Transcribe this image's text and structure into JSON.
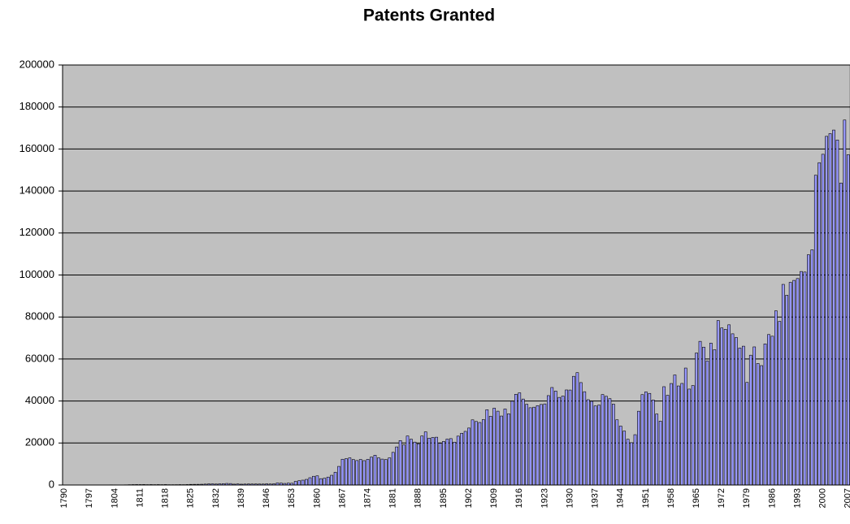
{
  "chart_data": {
    "type": "bar",
    "title": "Patents Granted",
    "categories": [
      "1790",
      null,
      null,
      null,
      null,
      null,
      null,
      "1797",
      null,
      null,
      null,
      null,
      null,
      null,
      "1804",
      null,
      null,
      null,
      null,
      null,
      null,
      "1811",
      null,
      null,
      null,
      null,
      null,
      null,
      "1818",
      null,
      null,
      null,
      null,
      null,
      null,
      "1825",
      null,
      null,
      null,
      null,
      null,
      null,
      "1832",
      null,
      null,
      null,
      null,
      null,
      null,
      "1839",
      null,
      null,
      null,
      null,
      null,
      null,
      "1846",
      null,
      null,
      null,
      null,
      null,
      null,
      "1853",
      null,
      null,
      null,
      null,
      null,
      null,
      "1860",
      null,
      null,
      null,
      null,
      null,
      null,
      "1867",
      null,
      null,
      null,
      null,
      null,
      null,
      "1874",
      null,
      null,
      null,
      null,
      null,
      null,
      "1881",
      null,
      null,
      null,
      null,
      null,
      null,
      "1888",
      null,
      null,
      null,
      null,
      null,
      null,
      "1895",
      null,
      null,
      null,
      null,
      null,
      null,
      "1902",
      null,
      null,
      null,
      null,
      null,
      null,
      "1909",
      null,
      null,
      null,
      null,
      null,
      null,
      "1916",
      null,
      null,
      null,
      null,
      null,
      null,
      "1923",
      null,
      null,
      null,
      null,
      null,
      null,
      "1930",
      null,
      null,
      null,
      null,
      null,
      null,
      "1937",
      null,
      null,
      null,
      null,
      null,
      null,
      "1944",
      null,
      null,
      null,
      null,
      null,
      null,
      "1951",
      null,
      null,
      null,
      null,
      null,
      null,
      "1958",
      null,
      null,
      null,
      null,
      null,
      null,
      "1965",
      null,
      null,
      null,
      null,
      null,
      null,
      "1972",
      null,
      null,
      null,
      null,
      null,
      null,
      "1979",
      null,
      null,
      null,
      null,
      null,
      null,
      "1986",
      null,
      null,
      null,
      null,
      null,
      null,
      "1993",
      null,
      null,
      null,
      null,
      null,
      null,
      "2000",
      null,
      null,
      null,
      null,
      null,
      null,
      "2007"
    ],
    "values": [
      3,
      33,
      11,
      20,
      22,
      12,
      44,
      51,
      28,
      44,
      41,
      44,
      65,
      97,
      84,
      57,
      63,
      99,
      158,
      203,
      223,
      215,
      238,
      181,
      210,
      173,
      206,
      174,
      222,
      156,
      155,
      168,
      200,
      173,
      228,
      304,
      323,
      331,
      368,
      447,
      544,
      573,
      474,
      586,
      630,
      752,
      702,
      426,
      514,
      404,
      458,
      490,
      488,
      493,
      478,
      473,
      566,
      495,
      583,
      984,
      883,
      752,
      885,
      844,
      1755,
      2046,
      2315,
      2686,
      3467,
      4160,
      4357,
      3020,
      3214,
      3773,
      4630,
      6088,
      8863,
      12277,
      12526,
      12931,
      12137,
      11659,
      12180,
      11616,
      12230,
      13291,
      14172,
      12920,
      12345,
      12133,
      12926,
      15548,
      18135,
      21162,
      19118,
      23331,
      21797,
      20429,
      19585,
      23360,
      25313,
      22312,
      22661,
      22768,
      19875,
      20745,
      21867,
      22098,
      20404,
      23278,
      24644,
      25546,
      27136,
      31029,
      30258,
      29775,
      31170,
      35859,
      32757,
      36574,
      35168,
      32856,
      36198,
      33917,
      39892,
      43207,
      43892,
      40935,
      38452,
      36797,
      37060,
      37798,
      38369,
      38616,
      42574,
      46432,
      44733,
      41717,
      42357,
      45267,
      45226,
      51756,
      53504,
      48774,
      44420,
      40618,
      39831,
      37683,
      38061,
      43073,
      42238,
      41109,
      38514,
      31054,
      28053,
      25695,
      21803,
      20139,
      23963,
      35131,
      43040,
      44326,
      43616,
      40468,
      33809,
      30432,
      46817,
      42744,
      48330,
      52408,
      47170,
      48368,
      55691,
      45679,
      47375,
      62857,
      68406,
      65652,
      59104,
      67559,
      64429,
      78317,
      74810,
      74143,
      76278,
      72000,
      70226,
      65269,
      66102,
      48854,
      61819,
      65771,
      57888,
      56860,
      67200,
      71661,
      70860,
      82952,
      77924,
      95537,
      90365,
      96511,
      97444,
      98342,
      101676,
      101419,
      109646,
      111984,
      147517,
      153485,
      157494,
      166035,
      167331,
      169023,
      164290,
      143806,
      173794,
      157283
    ],
    "color": "#9999ff",
    "ylim": [
      0,
      200000
    ],
    "yticks": [
      0,
      20000,
      40000,
      60000,
      80000,
      100000,
      120000,
      140000,
      160000,
      180000,
      200000
    ],
    "grid": true
  }
}
